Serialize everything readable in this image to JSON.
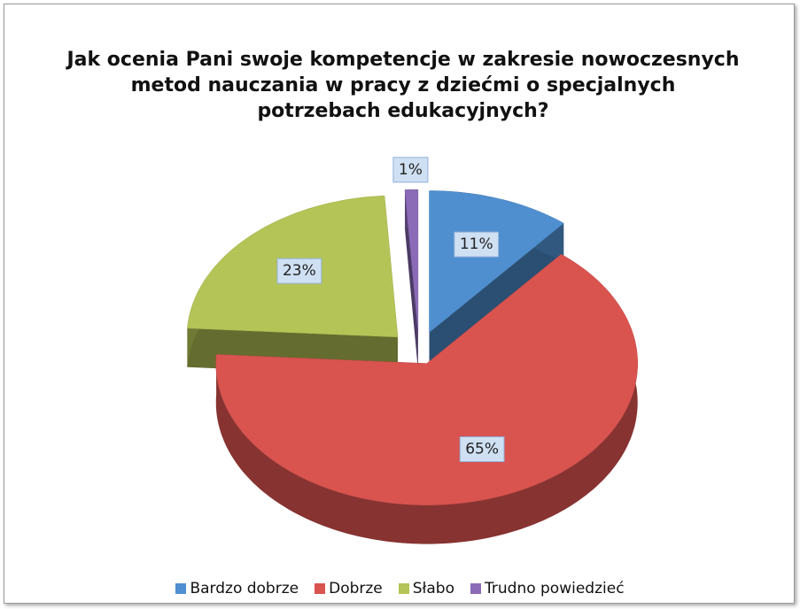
{
  "chart_data": {
    "type": "pie",
    "title": "Jak ocenia Pani swoje kompetencje w zakresie nowoczesnych metod nauczania w pracy z dziećmi o specjalnych potrzebach edukacyjnych?",
    "categories": [
      "Bardzo dobrze",
      "Dobrze",
      "Słabo",
      "Trudno powiedzieć"
    ],
    "values": [
      11,
      65,
      23,
      1
    ],
    "value_labels": [
      "11%",
      "65%",
      "23%",
      "1%"
    ],
    "colors": [
      "#4f8fcf",
      "#d9534f",
      "#b5c456",
      "#8b6bb8"
    ],
    "legend": "bottom"
  }
}
